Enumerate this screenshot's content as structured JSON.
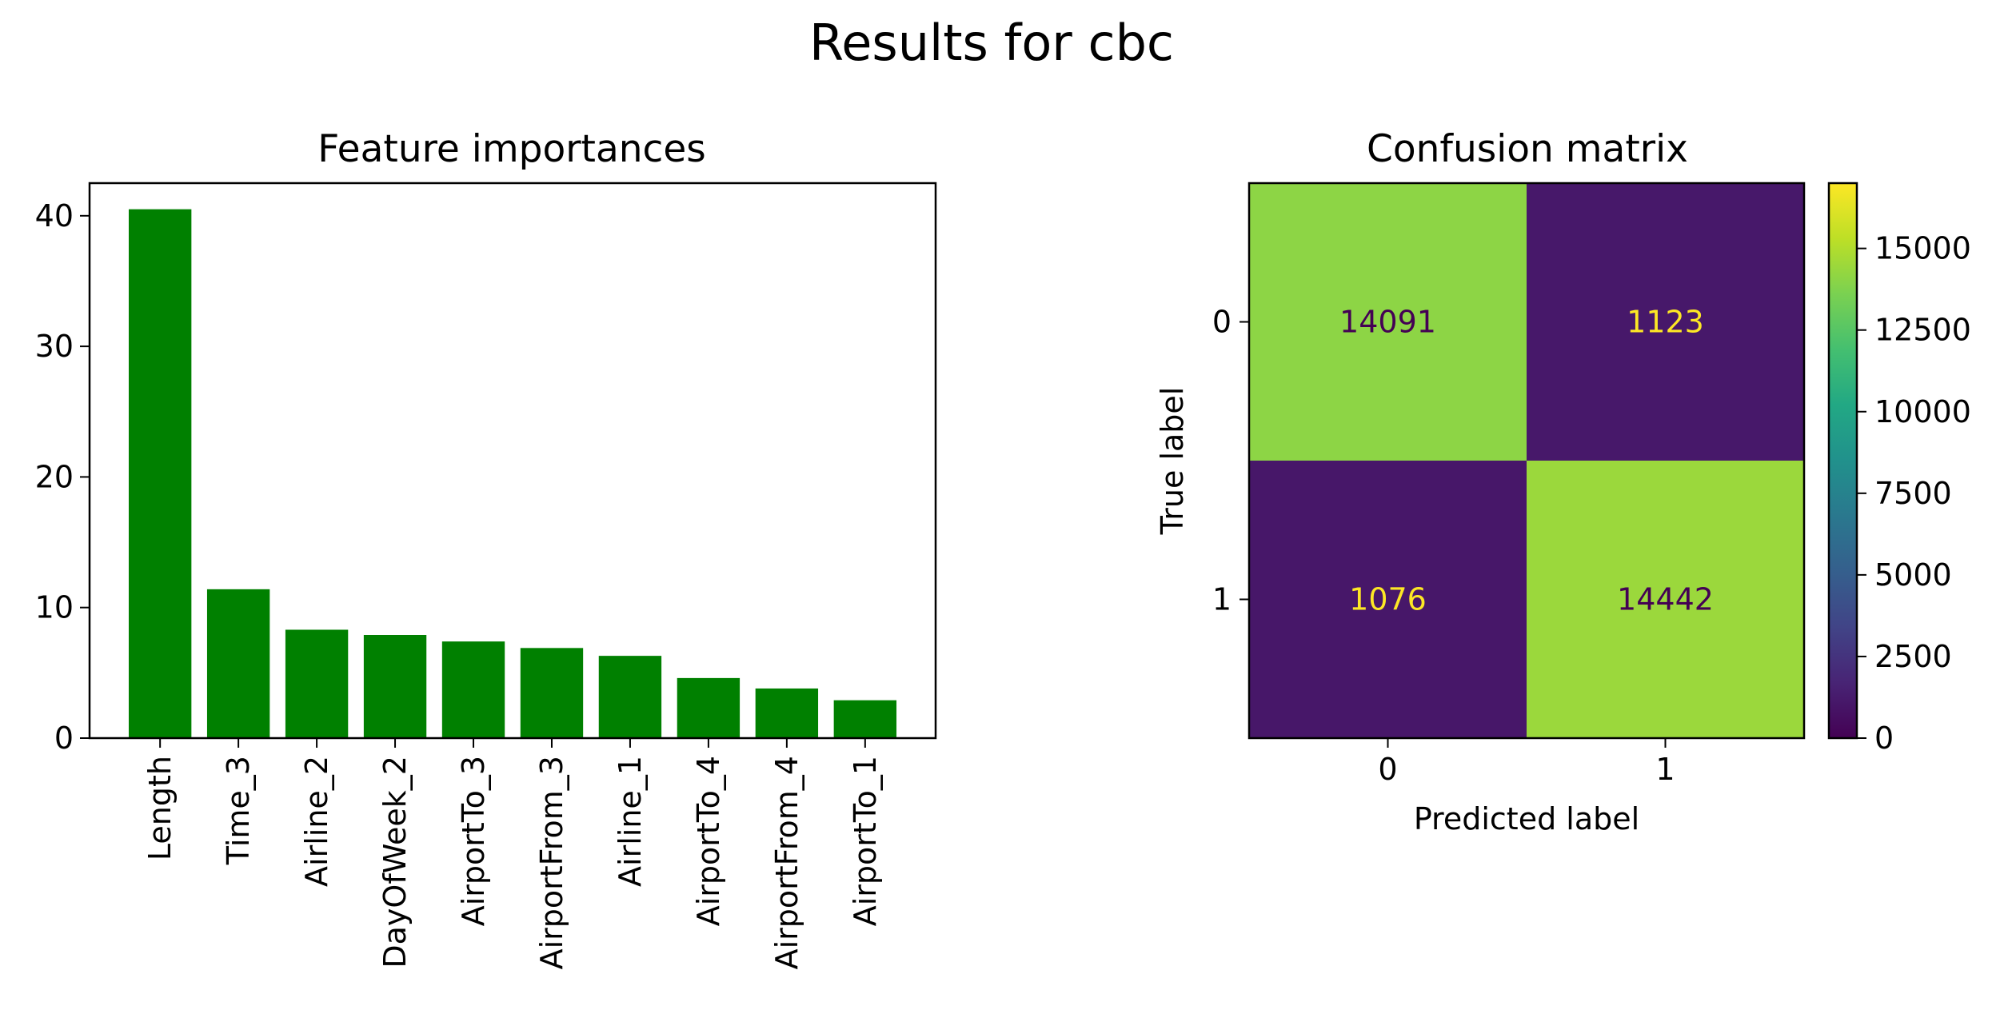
{
  "figure": {
    "suptitle": "Results for cbc"
  },
  "chart_data": [
    {
      "type": "bar",
      "title": "Feature importances",
      "xlabel": "",
      "ylabel": "",
      "categories": [
        "Length",
        "Time_3",
        "Airline_2",
        "DayOfWeek_2",
        "AirportTo_3",
        "AirportFrom_3",
        "Airline_1",
        "AirportTo_4",
        "AirportFrom_4",
        "AirportTo_1"
      ],
      "values": [
        40.5,
        11.4,
        8.3,
        7.9,
        7.4,
        6.9,
        6.3,
        4.6,
        3.8,
        2.9
      ],
      "ylim": [
        0,
        42.5
      ],
      "yticks": [
        "0",
        "10",
        "20",
        "30",
        "40"
      ],
      "color": "#008000",
      "grid": false
    },
    {
      "type": "heatmap",
      "title": "Confusion matrix",
      "xlabel": "Predicted label",
      "ylabel": "True label",
      "x_categories": [
        "0",
        "1"
      ],
      "y_categories": [
        "0",
        "1"
      ],
      "matrix": [
        [
          14091,
          1123
        ],
        [
          1076,
          14442
        ]
      ],
      "matrix_labels": [
        [
          "14091",
          "1123"
        ],
        [
          "1076",
          "14442"
        ]
      ],
      "colormap": "viridis",
      "colorbar_range": [
        0,
        17000
      ],
      "colorbar_ticks": [
        "0",
        "2500",
        "5000",
        "7500",
        "10000",
        "12500",
        "15000"
      ],
      "text_color_light": "#fde725",
      "text_color_dark": "#440154"
    }
  ]
}
